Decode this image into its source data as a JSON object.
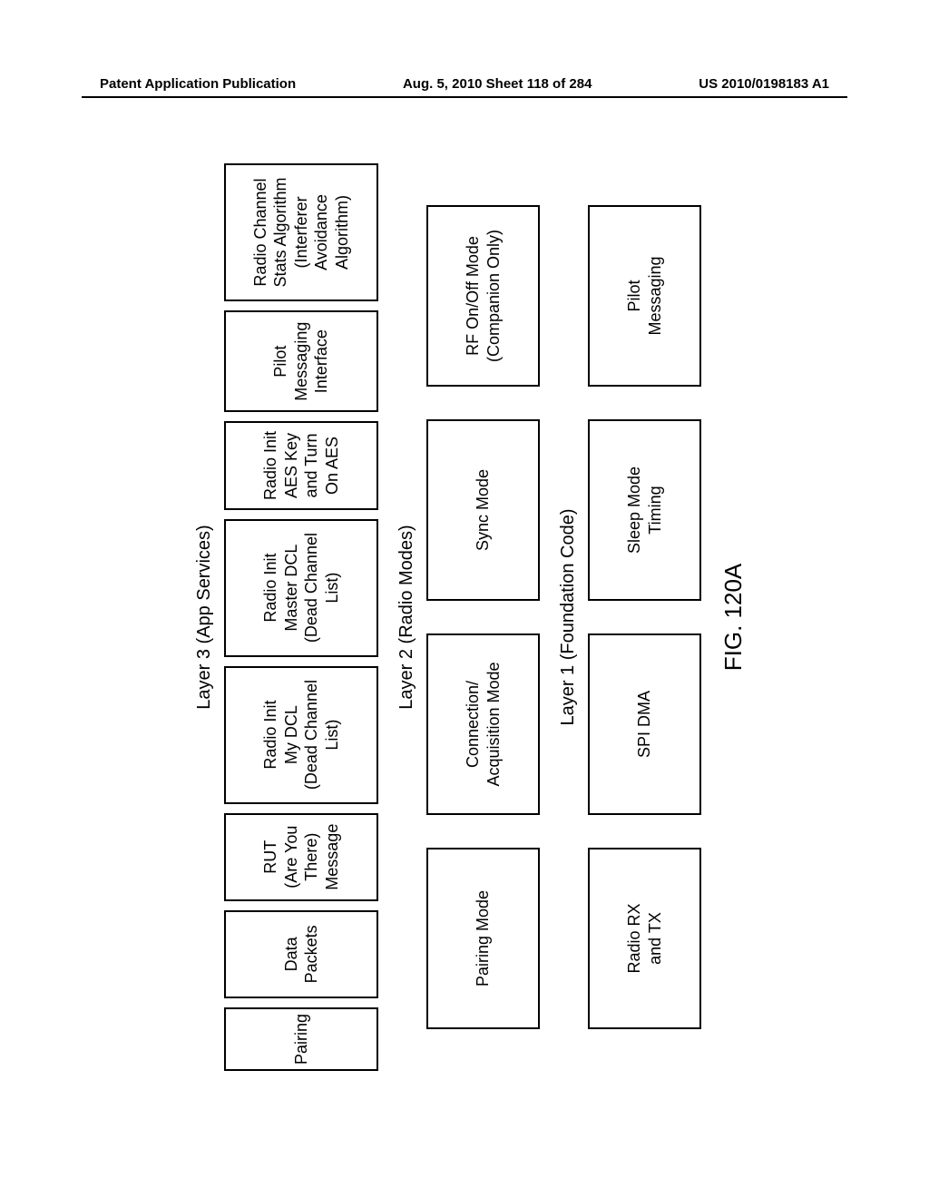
{
  "header": {
    "left": "Patent Application Publication",
    "center": "Aug. 5, 2010  Sheet 118 of 284",
    "right": "US 2010/0198183 A1"
  },
  "figure_label": "FIG. 120A",
  "layers": {
    "layer3": {
      "title": "Layer 3 (App Services)",
      "boxes": {
        "pairing": "Pairing",
        "data_packets": "Data\nPackets",
        "rut": "RUT\n(Are You\nThere)\nMessage",
        "my_dcl": "Radio Init\nMy DCL\n(Dead Channel\nList)",
        "master_dcl": "Radio Init\nMaster DCL\n(Dead Channel\nList)",
        "aes": "Radio Init\nAES Key\nand Turn\nOn AES",
        "pmi": "Pilot\nMessaging\nInterface",
        "stats": "Radio Channel\nStats Algorithm\n(Interferer\nAvoidance\nAlgorithm)"
      }
    },
    "layer2": {
      "title": "Layer 2 (Radio Modes)",
      "boxes": {
        "pairing_mode": "Pairing Mode",
        "conn_acq": "Connection/\nAcquisition Mode",
        "sync": "Sync Mode",
        "rf_onoff": "RF On/Off Mode\n(Companion Only)"
      }
    },
    "layer1": {
      "title": "Layer 1 (Foundation Code)",
      "boxes": {
        "radio_rxtx": "Radio RX\nand TX",
        "spi_dma": "SPI DMA",
        "sleep": "Sleep Mode\nTiming",
        "pilot_msg": "Pilot\nMessaging"
      }
    }
  },
  "style": {
    "box_border_color": "#000000",
    "background_color": "#ffffff",
    "font_family": "Arial",
    "box_font_size_pt": 13,
    "label_font_size_pt": 15,
    "fig_font_size_pt": 20,
    "rotation_deg": -90
  }
}
